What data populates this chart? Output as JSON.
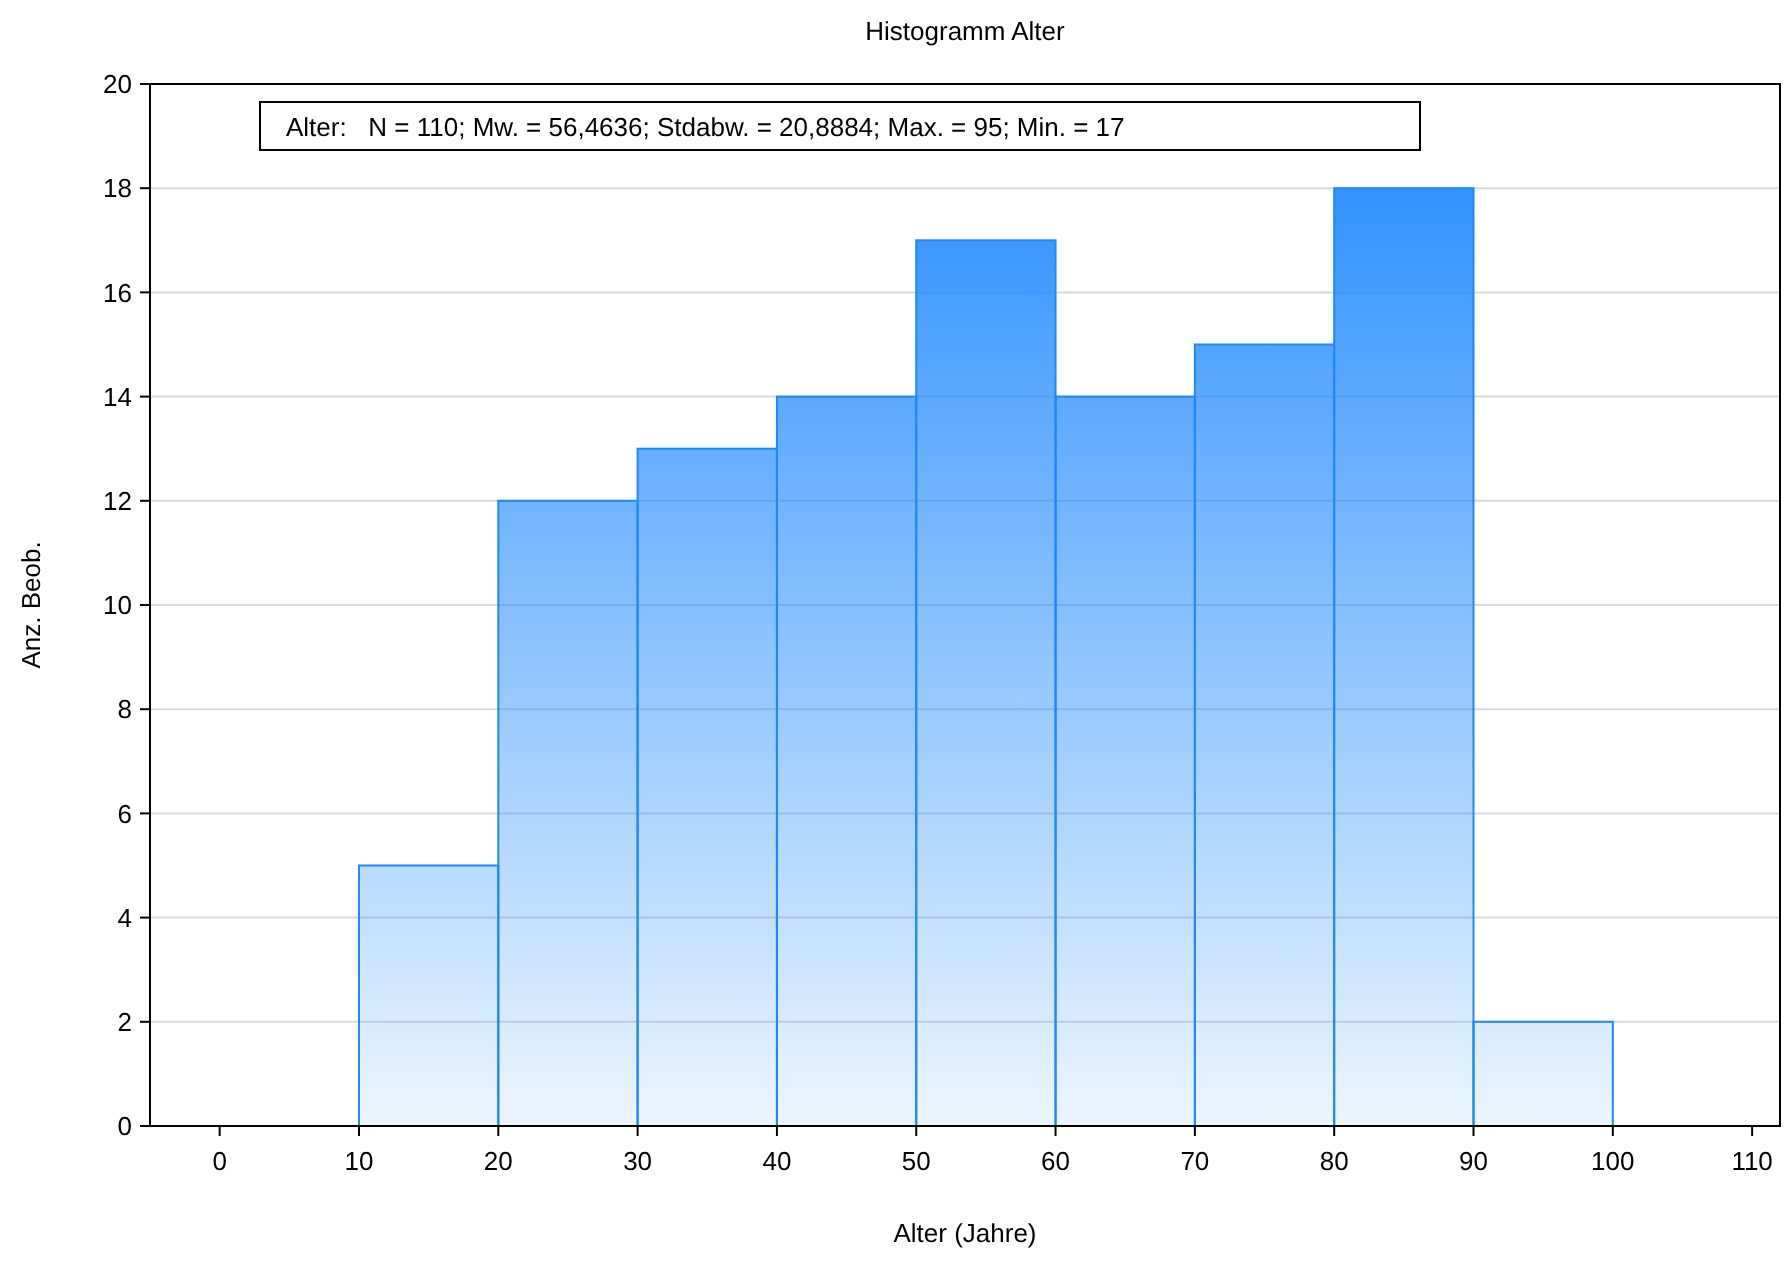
{
  "chart_data": {
    "type": "histogram",
    "title": "Histogramm Alter",
    "xlabel": "Alter (Jahre)",
    "ylabel": "Anz. Beob.",
    "bins": [
      10,
      20,
      30,
      40,
      50,
      60,
      70,
      80,
      90,
      100
    ],
    "values": [
      5,
      12,
      13,
      14,
      17,
      14,
      15,
      18,
      2
    ],
    "color": "#1e88ff",
    "xlim": [
      -5,
      112
    ],
    "xticks": [
      0,
      10,
      20,
      30,
      40,
      50,
      60,
      70,
      80,
      90,
      100,
      110
    ],
    "ylim": [
      0,
      20
    ],
    "yticks": [
      0,
      2,
      4,
      6,
      8,
      10,
      12,
      14,
      16,
      18,
      20
    ],
    "grid": "y",
    "annotations": [
      "Alter:   N = 110; Mw. = 56,4636; Stdabw. = 20,8884; Max. = 95; Min. = 17"
    ]
  }
}
